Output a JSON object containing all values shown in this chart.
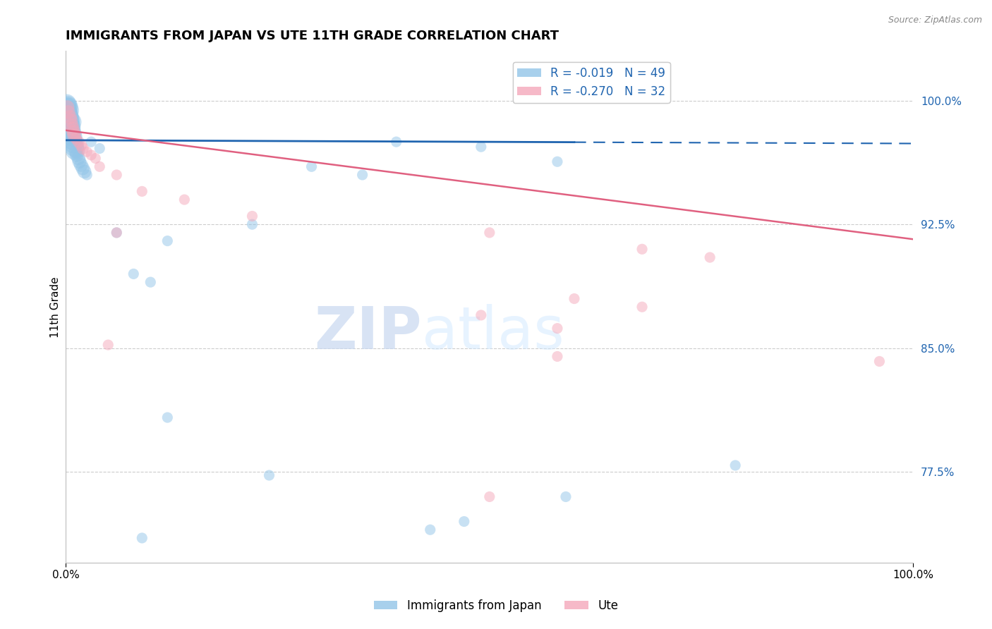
{
  "title": "IMMIGRANTS FROM JAPAN VS UTE 11TH GRADE CORRELATION CHART",
  "source_text": "Source: ZipAtlas.com",
  "ylabel": "11th Grade",
  "blue_scatter": [
    [
      0.001,
      0.998
    ],
    [
      0.001,
      0.996
    ],
    [
      0.001,
      0.994
    ],
    [
      0.002,
      0.997
    ],
    [
      0.002,
      0.993
    ],
    [
      0.002,
      0.991
    ],
    [
      0.003,
      0.996
    ],
    [
      0.003,
      0.992
    ],
    [
      0.003,
      0.989
    ],
    [
      0.004,
      0.994
    ],
    [
      0.004,
      0.99
    ],
    [
      0.005,
      0.988
    ],
    [
      0.005,
      0.986
    ],
    [
      0.006,
      0.984
    ],
    [
      0.006,
      0.982
    ],
    [
      0.007,
      0.987
    ],
    [
      0.007,
      0.98
    ],
    [
      0.008,
      0.978
    ],
    [
      0.008,
      0.976
    ],
    [
      0.009,
      0.974
    ],
    [
      0.01,
      0.972
    ],
    [
      0.011,
      0.97
    ],
    [
      0.012,
      0.969
    ],
    [
      0.013,
      0.967
    ],
    [
      0.015,
      0.965
    ],
    [
      0.016,
      0.963
    ],
    [
      0.018,
      0.961
    ],
    [
      0.02,
      0.959
    ],
    [
      0.022,
      0.957
    ],
    [
      0.025,
      0.955
    ],
    [
      0.03,
      0.975
    ],
    [
      0.04,
      0.971
    ],
    [
      0.06,
      0.92
    ],
    [
      0.12,
      0.915
    ],
    [
      0.08,
      0.895
    ],
    [
      0.1,
      0.89
    ],
    [
      0.22,
      0.925
    ],
    [
      0.29,
      0.96
    ],
    [
      0.35,
      0.955
    ],
    [
      0.39,
      0.975
    ],
    [
      0.49,
      0.972
    ],
    [
      0.58,
      0.963
    ],
    [
      0.12,
      0.808
    ],
    [
      0.24,
      0.773
    ],
    [
      0.59,
      0.76
    ],
    [
      0.79,
      0.779
    ],
    [
      0.47,
      0.745
    ],
    [
      0.43,
      0.74
    ],
    [
      0.09,
      0.735
    ]
  ],
  "pink_scatter": [
    [
      0.002,
      0.996
    ],
    [
      0.003,
      0.993
    ],
    [
      0.005,
      0.99
    ],
    [
      0.006,
      0.988
    ],
    [
      0.007,
      0.985
    ],
    [
      0.008,
      0.983
    ],
    [
      0.009,
      0.981
    ],
    [
      0.01,
      0.979
    ],
    [
      0.012,
      0.977
    ],
    [
      0.015,
      0.975
    ],
    [
      0.018,
      0.973
    ],
    [
      0.02,
      0.971
    ],
    [
      0.025,
      0.969
    ],
    [
      0.03,
      0.967
    ],
    [
      0.035,
      0.965
    ],
    [
      0.04,
      0.96
    ],
    [
      0.06,
      0.955
    ],
    [
      0.06,
      0.92
    ],
    [
      0.09,
      0.945
    ],
    [
      0.14,
      0.94
    ],
    [
      0.22,
      0.93
    ],
    [
      0.5,
      0.92
    ],
    [
      0.68,
      0.91
    ],
    [
      0.76,
      0.905
    ],
    [
      0.6,
      0.88
    ],
    [
      0.68,
      0.875
    ],
    [
      0.49,
      0.87
    ],
    [
      0.58,
      0.862
    ],
    [
      0.05,
      0.852
    ],
    [
      0.58,
      0.845
    ],
    [
      0.96,
      0.842
    ],
    [
      0.5,
      0.76
    ]
  ],
  "blue_line_x": [
    0.0,
    1.0
  ],
  "blue_line_y": [
    0.976,
    0.974
  ],
  "blue_line_solid_end": 0.6,
  "pink_line_x": [
    0.0,
    1.0
  ],
  "pink_line_y": [
    0.982,
    0.916
  ],
  "blue_color": "#92C5E8",
  "pink_color": "#F4A8BB",
  "blue_line_color": "#2065B0",
  "pink_line_color": "#E06080",
  "scatter_size_default": 120,
  "scatter_size_large": 400,
  "scatter_alpha": 0.5,
  "y_tick_vals": [
    0.775,
    0.85,
    0.925,
    1.0
  ],
  "y_tick_labels": [
    "77.5%",
    "85.0%",
    "92.5%",
    "100.0%"
  ],
  "ylim": [
    0.72,
    1.03
  ],
  "xlim": [
    0.0,
    1.0
  ],
  "watermark_zip": "ZIP",
  "watermark_atlas": "atlas",
  "background_color": "#FFFFFF",
  "grid_color": "#CCCCCC"
}
